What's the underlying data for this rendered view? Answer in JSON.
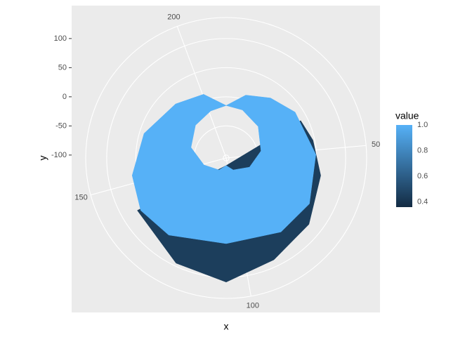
{
  "chart_data": {
    "type": "polar-polygon",
    "xlabel": "x",
    "ylabel": "y",
    "xlim": [
      0,
      212
    ],
    "ylim": [
      -105,
      136
    ],
    "xticks": [
      50,
      100,
      150,
      200
    ],
    "yticks": [
      -100,
      -50,
      0,
      50,
      100
    ],
    "grid": true,
    "legend_title": "value",
    "colorbar": {
      "low": "#132B43",
      "high": "#56B1F7",
      "limits": [
        0.36,
        1.0
      ],
      "ticks": [
        {
          "value": 1,
          "label": "1.0"
        },
        0.8,
        0.6,
        0.4
      ]
    },
    "polygons": [
      {
        "value": 0.45,
        "x": [
          37.3,
          46.2,
          59.2,
          75.8,
          91.2,
          106,
          121,
          141,
          106
        ],
        "y": [
          38,
          47,
          60,
          77,
          88,
          108,
          95,
          72,
          -92
        ]
      },
      {
        "value": 1,
        "x": [
          0,
          10.2,
          21.5,
          33.2,
          51.7,
          70,
          84.5,
          106,
          127.6,
          140.4,
          152.8,
          168.8,
          186.6,
          200.5
        ],
        "y": [
          -15,
          8,
          23,
          37,
          49,
          58,
          53,
          42,
          60,
          67,
          59,
          42,
          22,
          11
        ],
        "hole_x": [
          0,
          11,
          26.8,
          46.3,
          65.7,
          88,
          106,
          124,
          148.8,
          168.8,
          186.6,
          201.3
        ],
        "hole_y": [
          -15,
          -18,
          -28,
          -44,
          -62,
          -81,
          -92,
          -81,
          -65,
          -42,
          -28,
          -20
        ]
      }
    ]
  }
}
